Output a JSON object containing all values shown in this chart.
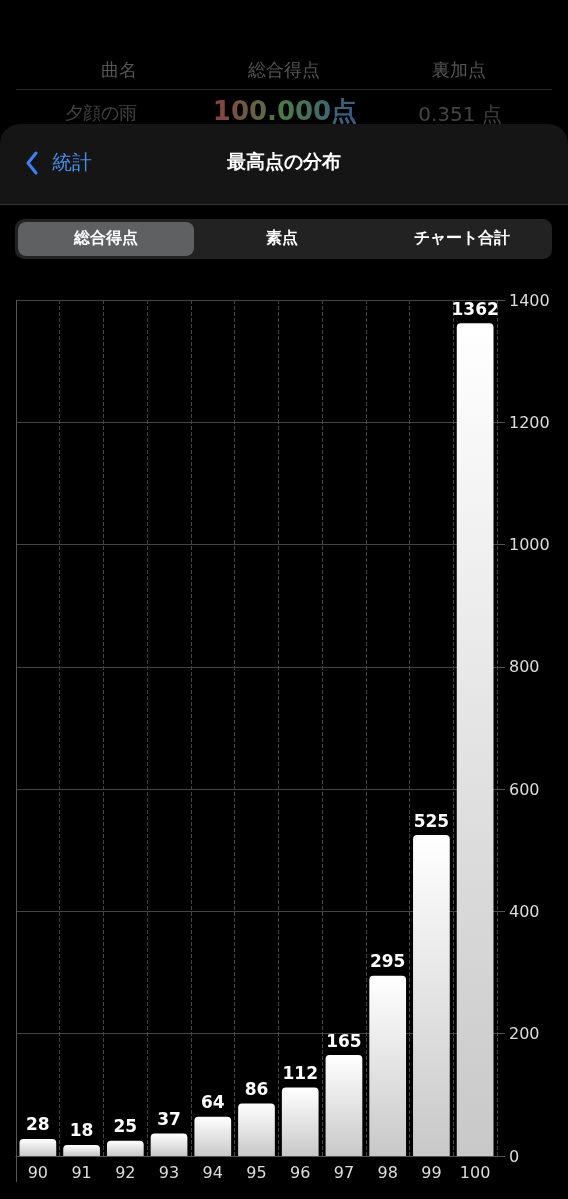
{
  "chart_data": {
    "type": "bar",
    "title": "最高点の分布",
    "annotations": [
      "曲名",
      "総合得点",
      "裏加点",
      "夕顔の雨",
      "100.000点",
      "0.351 点",
      "統計",
      "総合得点",
      "素点",
      "チャート合計"
    ],
    "categories": [
      "90",
      "91",
      "92",
      "93",
      "94",
      "95",
      "96",
      "97",
      "98",
      "99",
      "100"
    ],
    "values": [
      28,
      18,
      25,
      37,
      64,
      86,
      112,
      165,
      295,
      525,
      1362
    ],
    "color": "#c8c8c8",
    "ylim": [
      0,
      1400
    ],
    "yticks": [
      0,
      200,
      400,
      600,
      800,
      1000,
      1200,
      1400
    ],
    "grid": true,
    "data_labels": true
  }
}
